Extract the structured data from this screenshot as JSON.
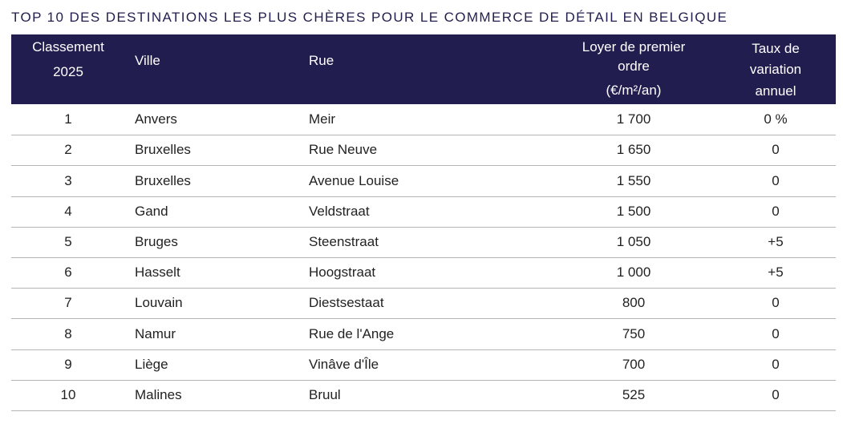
{
  "title": "TOP 10 DES DESTINATIONS LES PLUS CHÈRES POUR LE COMMERCE DE DÉTAIL EN BELGIQUE",
  "table": {
    "header": [
      [
        "Classement",
        "2025"
      ],
      [
        "Ville"
      ],
      [
        "Rue"
      ],
      [
        "Loyer de premier",
        "ordre",
        "(€/m²/an)"
      ],
      [
        "Taux de",
        "variation",
        "annuel"
      ]
    ],
    "rows": [
      [
        "1",
        "Anvers",
        "Meir",
        "1 700",
        "0 %"
      ],
      [
        "2",
        "Bruxelles",
        "Rue Neuve",
        "1 650",
        "0"
      ],
      [
        "3",
        "Bruxelles",
        "Avenue Louise",
        "1 550",
        "0"
      ],
      [
        "4",
        "Gand",
        "Veldstraat",
        "1 500",
        "0"
      ],
      [
        "5",
        "Bruges",
        "Steenstraat",
        "1 050",
        "+5"
      ],
      [
        "6",
        "Hasselt",
        "Hoogstraat",
        "1 000",
        "+5"
      ],
      [
        "7",
        "Louvain",
        "Diestsestaat",
        "800",
        "0"
      ],
      [
        "8",
        "Namur",
        "Rue de l'Ange",
        "750",
        "0"
      ],
      [
        "9",
        "Liège",
        "Vinâve d'Île",
        "700",
        "0"
      ],
      [
        "10",
        "Malines",
        "Bruul",
        "525",
        "0"
      ]
    ]
  }
}
